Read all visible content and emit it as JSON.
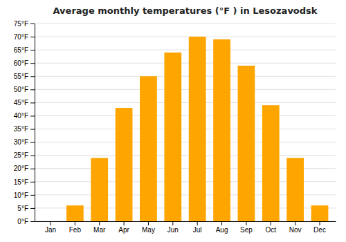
{
  "chart_data": {
    "type": "bar",
    "title": "Average monthly temperatures (°F ) in Lesozavodsk",
    "categories": [
      "Jan",
      "Feb",
      "Mar",
      "Apr",
      "May",
      "Jun",
      "Jul",
      "Aug",
      "Sep",
      "Oct",
      "Nov",
      "Dec"
    ],
    "values": [
      0,
      6,
      24,
      43,
      55,
      64,
      70,
      69,
      59,
      44,
      24,
      6
    ],
    "color": "#FFA500",
    "ylim": [
      0,
      75
    ],
    "yticks": [
      {
        "value": 0,
        "label": "0°F"
      },
      {
        "value": 5,
        "label": "5°F"
      },
      {
        "value": 10,
        "label": "10°F"
      },
      {
        "value": 15,
        "label": "15°F"
      },
      {
        "value": 20,
        "label": "20°F"
      },
      {
        "value": 25,
        "label": "25°F"
      },
      {
        "value": 30,
        "label": "30°F"
      },
      {
        "value": 35,
        "label": "35°F"
      },
      {
        "value": 40,
        "label": "40°F"
      },
      {
        "value": 45,
        "label": "45°F"
      },
      {
        "value": 50,
        "label": "50°F"
      },
      {
        "value": 55,
        "label": "55°F"
      },
      {
        "value": 60,
        "label": "60°F"
      },
      {
        "value": 65,
        "label": "65°F"
      },
      {
        "value": 70,
        "label": "70°F"
      },
      {
        "value": 75,
        "label": "75°F"
      }
    ],
    "grid": true
  }
}
